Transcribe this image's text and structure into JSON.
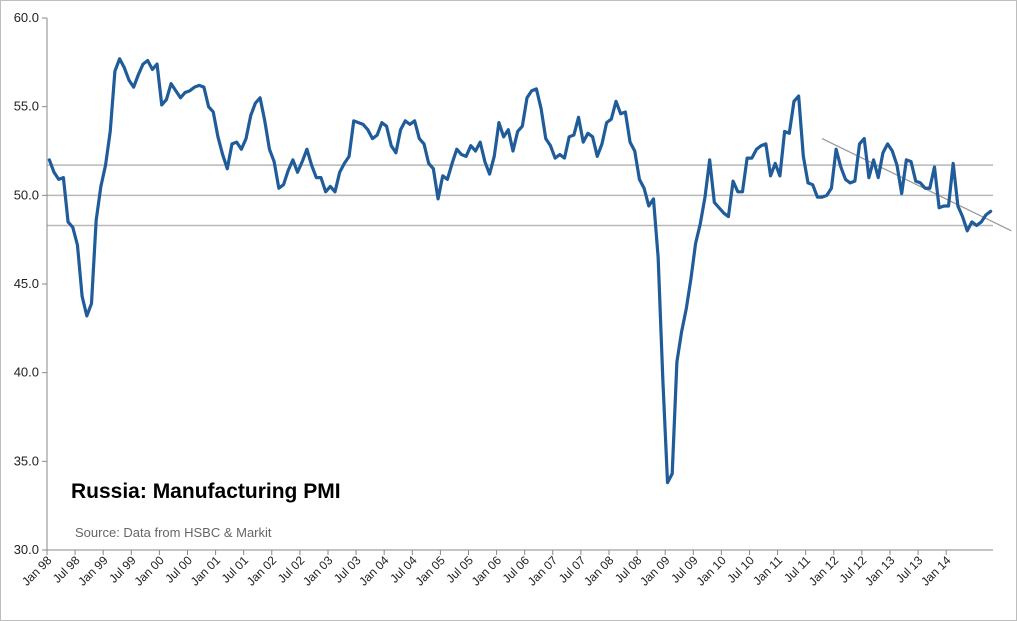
{
  "chart_data": {
    "type": "line",
    "title": "Russia: Manufacturing PMI",
    "source": "Source: Data from HSBC & Markit",
    "ylim": [
      30,
      60
    ],
    "y_ticks": [
      "60.0",
      "55.0",
      "50.0",
      "45.0",
      "40.0",
      "35.0",
      "30.0"
    ],
    "x_tick_labels": [
      "Jan 98",
      "Jul 98",
      "Jan 99",
      "Jul 99",
      "Jan 00",
      "Jul 00",
      "Jan 01",
      "Jul 01",
      "Jan 02",
      "Jul 02",
      "Jan 03",
      "Jul 03",
      "Jan 04",
      "Jul 04",
      "Jan 05",
      "Jul 05",
      "Jan 06",
      "Jul 06",
      "Jan 07",
      "Jul 07",
      "Jan 08",
      "Jul 08",
      "Jan 09",
      "Jul 09",
      "Jan 10",
      "Jul 10",
      "Jan 11",
      "Jul 11",
      "Jan 12",
      "Jul 12",
      "Jan 13",
      "Jul 13",
      "Jan 14"
    ],
    "x_start": "Jan 98",
    "grid": false,
    "reference_lines": [
      51.7,
      50.0,
      48.3
    ],
    "trend_line": {
      "from": {
        "x": "Oct 11",
        "y": 53.2
      },
      "to": {
        "x": "Nov 14",
        "y": 48.3
      }
    },
    "colors": {
      "series": "#1f5c99",
      "reference": "#b8b8b8",
      "trend": "#999999"
    },
    "series": [
      {
        "values": [
          52.0,
          51.3,
          50.9,
          51.0,
          48.5,
          48.2,
          47.2,
          44.3,
          43.2,
          43.9,
          48.6,
          50.5,
          51.7,
          53.6,
          57.0,
          57.7,
          57.2,
          56.5,
          56.1,
          56.8,
          57.4,
          57.6,
          57.1,
          57.4,
          55.1,
          55.4,
          56.3,
          55.9,
          55.5,
          55.8,
          55.9,
          56.1,
          56.2,
          56.1,
          55.0,
          54.7,
          53.3,
          52.3,
          51.5,
          52.9,
          53.0,
          52.6,
          53.2,
          54.5,
          55.2,
          55.5,
          54.2,
          52.6,
          51.9,
          50.4,
          50.6,
          51.4,
          52.0,
          51.3,
          51.9,
          52.6,
          51.7,
          51.0,
          51.0,
          50.2,
          50.5,
          50.2,
          51.3,
          51.8,
          52.2,
          54.2,
          54.1,
          54.0,
          53.7,
          53.2,
          53.4,
          54.1,
          53.9,
          52.8,
          52.4,
          53.7,
          54.2,
          54.0,
          54.2,
          53.2,
          52.9,
          51.8,
          51.5,
          49.8,
          51.1,
          50.9,
          51.8,
          52.6,
          52.3,
          52.2,
          52.8,
          52.5,
          53.0,
          51.9,
          51.2,
          52.2,
          54.1,
          53.3,
          53.7,
          52.5,
          53.6,
          53.9,
          55.5,
          55.9,
          56.0,
          54.9,
          53.2,
          52.8,
          52.1,
          52.3,
          52.1,
          53.3,
          53.4,
          54.4,
          53.0,
          53.5,
          53.3,
          52.2,
          52.9,
          54.1,
          54.3,
          55.3,
          54.6,
          54.7,
          53.0,
          52.5,
          50.9,
          50.4,
          49.4,
          49.8,
          46.5,
          39.6,
          33.8,
          34.3,
          40.6,
          42.3,
          43.6,
          45.3,
          47.3,
          48.4,
          49.9,
          52.0,
          49.6,
          49.3,
          49.0,
          48.8,
          50.8,
          50.2,
          50.2,
          52.1,
          52.1,
          52.6,
          52.8,
          52.9,
          51.1,
          51.8,
          51.1,
          53.6,
          53.5,
          55.3,
          55.6,
          52.2,
          50.7,
          50.6,
          49.9,
          49.9,
          50.0,
          50.4,
          52.6,
          51.6,
          50.9,
          50.7,
          50.8,
          52.9,
          53.2,
          51.0,
          52.0,
          51.0,
          52.4,
          52.9,
          52.5,
          51.7,
          50.1,
          52.0,
          51.9,
          50.8,
          50.7,
          50.4,
          50.4,
          51.6,
          49.3,
          49.4,
          49.4,
          51.8,
          49.4,
          48.8,
          48.0,
          48.5,
          48.3,
          48.5,
          48.9,
          49.1
        ]
      }
    ]
  }
}
